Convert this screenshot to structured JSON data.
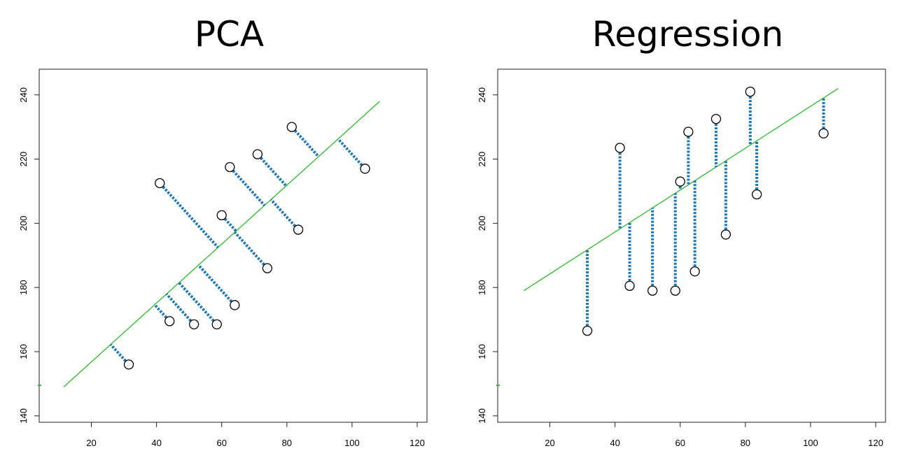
{
  "charts": [
    {
      "title": "PCA",
      "chart_data": {
        "type": "scatter",
        "method": "PCA",
        "xlim": [
          4,
          123
        ],
        "ylim": [
          138,
          248
        ],
        "x_ticks": [
          20,
          40,
          60,
          80,
          100,
          120
        ],
        "y_ticks": [
          140,
          160,
          180,
          200,
          220,
          240
        ],
        "points": [
          {
            "x": 31.5,
            "y": 156
          },
          {
            "x": 44,
            "y": 169.5
          },
          {
            "x": 51.5,
            "y": 168.5
          },
          {
            "x": 58.5,
            "y": 168.5
          },
          {
            "x": 64,
            "y": 174.5
          },
          {
            "x": 41,
            "y": 212.5
          },
          {
            "x": 60,
            "y": 202.5
          },
          {
            "x": 74,
            "y": 186
          },
          {
            "x": 62.5,
            "y": 217.5
          },
          {
            "x": 83.5,
            "y": 198
          },
          {
            "x": 71,
            "y": 221.5
          },
          {
            "x": 81.5,
            "y": 230
          },
          {
            "x": 104,
            "y": 217
          }
        ],
        "fit_line": {
          "x1": 11.5,
          "y1": 149,
          "x2": 108.5,
          "y2": 238
        },
        "residuals": "perpendicular",
        "colors": {
          "line": "#2db82d",
          "residual": "#1f77b4",
          "points": "#000000"
        },
        "grid": false
      }
    },
    {
      "title": "Regression",
      "chart_data": {
        "type": "scatter",
        "method": "Regression",
        "xlim": [
          4,
          123
        ],
        "ylim": [
          138,
          248
        ],
        "x_ticks": [
          20,
          40,
          60,
          80,
          100,
          120
        ],
        "y_ticks": [
          140,
          160,
          180,
          200,
          220,
          240
        ],
        "points": [
          {
            "x": 31.5,
            "y": 166.5
          },
          {
            "x": 41.5,
            "y": 223.5
          },
          {
            "x": 44.5,
            "y": 180.5
          },
          {
            "x": 51.5,
            "y": 179
          },
          {
            "x": 58.5,
            "y": 179
          },
          {
            "x": 60,
            "y": 213
          },
          {
            "x": 62.5,
            "y": 228.5
          },
          {
            "x": 64.5,
            "y": 185
          },
          {
            "x": 71,
            "y": 232.5
          },
          {
            "x": 74,
            "y": 196.5
          },
          {
            "x": 81.5,
            "y": 241
          },
          {
            "x": 83.5,
            "y": 209
          },
          {
            "x": 104,
            "y": 228
          }
        ],
        "fit_line": {
          "x1": 12,
          "y1": 179,
          "x2": 108.5,
          "y2": 242
        },
        "residuals": "vertical",
        "colors": {
          "line": "#2db82d",
          "residual": "#1f77b4",
          "points": "#000000"
        },
        "grid": false
      }
    }
  ]
}
